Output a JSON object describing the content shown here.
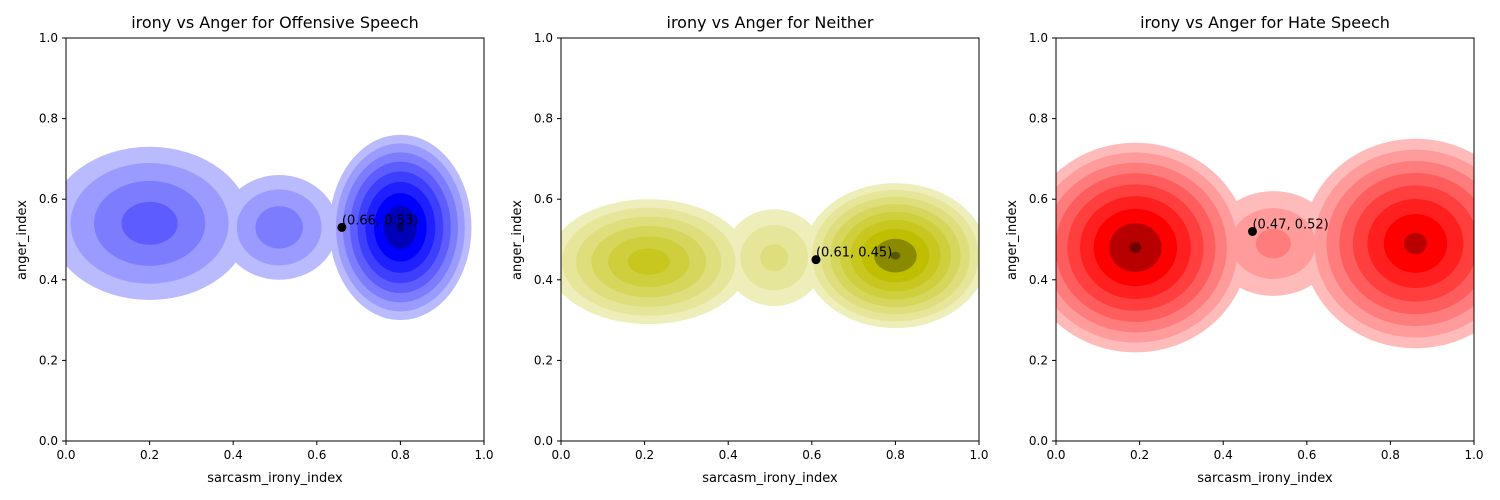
{
  "chart_data": [
    {
      "type": "kde-contour",
      "title": "irony vs Anger for Offensive Speech",
      "xlabel": "sarcasm_irony_index",
      "ylabel": "anger_index",
      "xlim": [
        0,
        1
      ],
      "ylim": [
        0,
        1
      ],
      "xticks": [
        "0.0",
        "0.2",
        "0.4",
        "0.6",
        "0.8",
        "1.0"
      ],
      "yticks": [
        "0.0",
        "0.2",
        "0.4",
        "0.6",
        "0.8",
        "1.0"
      ],
      "color": "#0000ff",
      "density_peaks": [
        {
          "x": 0.8,
          "y": 0.53,
          "weight": 1.0
        },
        {
          "x": 0.2,
          "y": 0.54,
          "weight": 0.45
        },
        {
          "x": 0.52,
          "y": 0.54,
          "weight": 0.35
        }
      ],
      "marked_point": {
        "x": 0.66,
        "y": 0.53,
        "label": "(0.66, 0.53)"
      }
    },
    {
      "type": "kde-contour",
      "title": "irony vs Anger for Neither",
      "xlabel": "sarcasm_irony_index",
      "ylabel": "anger_index",
      "xlim": [
        0,
        1
      ],
      "ylim": [
        0,
        1
      ],
      "xticks": [
        "0.0",
        "0.2",
        "0.4",
        "0.6",
        "0.8",
        "1.0"
      ],
      "yticks": [
        "0.0",
        "0.2",
        "0.4",
        "0.6",
        "0.8",
        "1.0"
      ],
      "color": "#bfbf00",
      "density_peaks": [
        {
          "x": 0.8,
          "y": 0.45,
          "weight": 1.0
        },
        {
          "x": 0.21,
          "y": 0.44,
          "weight": 0.7
        }
      ],
      "marked_point": {
        "x": 0.61,
        "y": 0.45,
        "label": "(0.61, 0.45)"
      }
    },
    {
      "type": "kde-contour",
      "title": "irony vs Anger for Hate Speech",
      "xlabel": "sarcasm_irony_index",
      "ylabel": "anger_index",
      "xlim": [
        0,
        1
      ],
      "ylim": [
        0,
        1
      ],
      "xticks": [
        "0.0",
        "0.2",
        "0.4",
        "0.6",
        "0.8",
        "1.0"
      ],
      "yticks": [
        "0.0",
        "0.2",
        "0.4",
        "0.6",
        "0.8",
        "1.0"
      ],
      "color": "#ff0000",
      "density_peaks": [
        {
          "x": 0.19,
          "y": 0.48,
          "weight": 1.0
        },
        {
          "x": 0.86,
          "y": 0.49,
          "weight": 0.9
        }
      ],
      "marked_point": {
        "x": 0.47,
        "y": 0.52,
        "label": "(0.47, 0.52)"
      }
    }
  ]
}
